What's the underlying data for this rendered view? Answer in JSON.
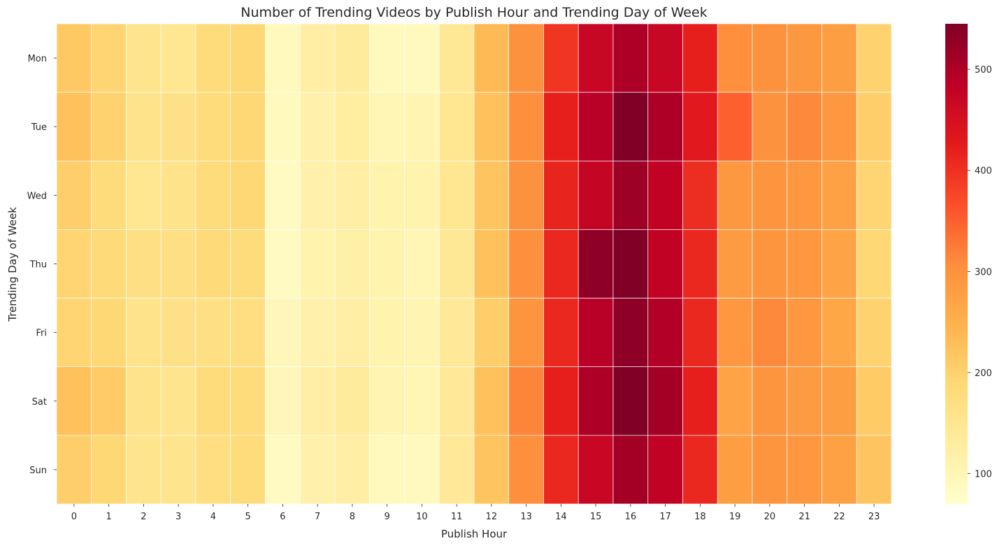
{
  "chart_data": {
    "type": "heatmap",
    "title": "Number of Trending Videos by Publish Hour and Trending Day of Week",
    "xlabel": "Publish Hour",
    "ylabel": "Trending Day of Week",
    "x_categories": [
      "0",
      "1",
      "2",
      "3",
      "4",
      "5",
      "6",
      "7",
      "8",
      "9",
      "10",
      "11",
      "12",
      "13",
      "14",
      "15",
      "16",
      "17",
      "18",
      "19",
      "20",
      "21",
      "22",
      "23"
    ],
    "y_categories": [
      "Mon",
      "Tue",
      "Wed",
      "Thu",
      "Fri",
      "Sat",
      "Sun"
    ],
    "values": [
      [
        215,
        195,
        155,
        150,
        180,
        190,
        90,
        125,
        135,
        90,
        90,
        145,
        235,
        300,
        395,
        470,
        500,
        470,
        420,
        305,
        300,
        290,
        280,
        200
      ],
      [
        225,
        200,
        160,
        165,
        180,
        190,
        90,
        115,
        130,
        100,
        105,
        150,
        225,
        305,
        420,
        490,
        545,
        500,
        430,
        350,
        300,
        310,
        290,
        205
      ],
      [
        205,
        180,
        150,
        160,
        180,
        190,
        85,
        115,
        125,
        110,
        110,
        150,
        220,
        300,
        415,
        475,
        515,
        480,
        405,
        290,
        295,
        290,
        275,
        195
      ],
      [
        195,
        185,
        170,
        170,
        185,
        180,
        85,
        110,
        120,
        110,
        100,
        145,
        225,
        305,
        410,
        530,
        545,
        480,
        410,
        285,
        295,
        290,
        270,
        190
      ],
      [
        195,
        190,
        160,
        165,
        170,
        175,
        95,
        115,
        125,
        110,
        105,
        140,
        205,
        295,
        410,
        490,
        530,
        495,
        410,
        290,
        310,
        290,
        265,
        200
      ],
      [
        225,
        210,
        160,
        155,
        180,
        180,
        95,
        125,
        135,
        105,
        100,
        140,
        225,
        315,
        420,
        500,
        545,
        510,
        420,
        270,
        295,
        285,
        280,
        210
      ],
      [
        205,
        190,
        155,
        155,
        175,
        180,
        85,
        115,
        125,
        90,
        90,
        140,
        220,
        305,
        410,
        470,
        510,
        480,
        410,
        280,
        295,
        290,
        275,
        220
      ]
    ],
    "colorbar": {
      "cmap": "YlOrRd",
      "range": [
        70,
        545
      ],
      "ticks": [
        100,
        200,
        300,
        400,
        500
      ]
    },
    "grid": false,
    "cell_borders": "white"
  }
}
